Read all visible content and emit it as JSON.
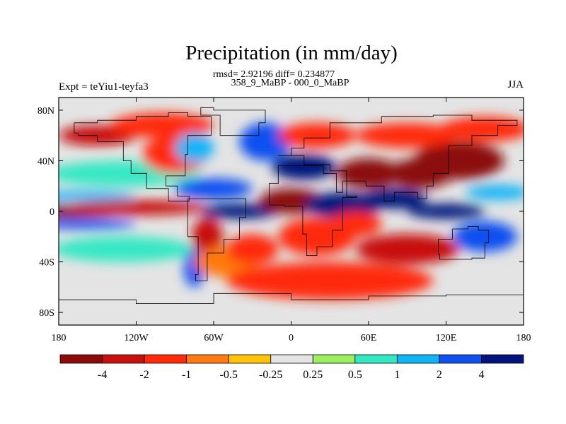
{
  "chart_data": {
    "type": "heatmap",
    "title": "Precipitation (in mm/day)",
    "subtitle_1": "rmsd= 2.92196 diff= 0.234877",
    "subtitle_2": "358_9_MaBP - 000_0_MaBP",
    "left_label": "Expt = teYiu1-teyfa3",
    "right_label": "JJA",
    "x_ticks": [
      "180",
      "120W",
      "60W",
      "0",
      "60E",
      "120E",
      "180"
    ],
    "x_tick_values": [
      -180,
      -120,
      -60,
      0,
      60,
      120,
      180
    ],
    "y_ticks": [
      "80N",
      "40N",
      "0",
      "40S",
      "80S"
    ],
    "y_tick_values": [
      80,
      40,
      0,
      -40,
      -80
    ],
    "xlim": [
      -180,
      180
    ],
    "ylim": [
      -90,
      90
    ],
    "colorbar": {
      "labels": [
        "-4",
        "-2",
        "-1",
        "-0.5",
        "-0.25",
        "0.25",
        "0.5",
        "1",
        "2",
        "4"
      ],
      "colors": [
        "#8b0a0a",
        "#c8100c",
        "#ff2a0a",
        "#ff7a10",
        "#ffc30a",
        "#e4e4e4",
        "#9cf060",
        "#34e8c4",
        "#12b4f6",
        "#1050f0",
        "#04147c"
      ]
    },
    "regions": [
      {
        "lon": -178,
        "lat": 0,
        "level": 0,
        "rx": 50,
        "ry": 5
      },
      {
        "lon": -120,
        "lat": 3,
        "level": 1,
        "rx": 55,
        "ry": 6
      },
      {
        "lon": -160,
        "lat": 12,
        "level": 8,
        "rx": 40,
        "ry": 4
      },
      {
        "lon": -160,
        "lat": -10,
        "level": 9,
        "rx": 40,
        "ry": 4
      },
      {
        "lon": -130,
        "lat": 30,
        "level": 7,
        "rx": 60,
        "ry": 10
      },
      {
        "lon": -130,
        "lat": -30,
        "level": 7,
        "rx": 55,
        "ry": 10
      },
      {
        "lon": -150,
        "lat": 60,
        "level": 1,
        "rx": 30,
        "ry": 8
      },
      {
        "lon": -100,
        "lat": 68,
        "level": 2,
        "rx": 40,
        "ry": 10
      },
      {
        "lon": -90,
        "lat": 45,
        "level": 2,
        "rx": 25,
        "ry": 15
      },
      {
        "lon": -75,
        "lat": 50,
        "level": 8,
        "rx": 15,
        "ry": 12
      },
      {
        "lon": -60,
        "lat": 18,
        "level": 9,
        "rx": 30,
        "ry": 8
      },
      {
        "lon": -40,
        "lat": 0,
        "level": 10,
        "rx": 30,
        "ry": 6
      },
      {
        "lon": -65,
        "lat": -20,
        "level": 1,
        "rx": 12,
        "ry": 15
      },
      {
        "lon": -75,
        "lat": -45,
        "level": 9,
        "rx": 8,
        "ry": 15
      },
      {
        "lon": -50,
        "lat": -40,
        "level": 3,
        "rx": 25,
        "ry": 12
      },
      {
        "lon": -30,
        "lat": -30,
        "level": 2,
        "rx": 20,
        "ry": 12
      },
      {
        "lon": -20,
        "lat": 55,
        "level": 9,
        "rx": 20,
        "ry": 15
      },
      {
        "lon": 10,
        "lat": 35,
        "level": 10,
        "rx": 25,
        "ry": 10
      },
      {
        "lon": 0,
        "lat": 8,
        "level": 0,
        "rx": 25,
        "ry": 10
      },
      {
        "lon": 40,
        "lat": 5,
        "level": 10,
        "rx": 30,
        "ry": 10
      },
      {
        "lon": 20,
        "lat": -20,
        "level": 2,
        "rx": 30,
        "ry": 15
      },
      {
        "lon": 60,
        "lat": 30,
        "level": 0,
        "rx": 25,
        "ry": 12
      },
      {
        "lon": 80,
        "lat": 10,
        "level": 10,
        "rx": 25,
        "ry": 8
      },
      {
        "lon": 100,
        "lat": 30,
        "level": 0,
        "rx": 25,
        "ry": 12
      },
      {
        "lon": 130,
        "lat": 40,
        "level": 0,
        "rx": 35,
        "ry": 15
      },
      {
        "lon": 120,
        "lat": 0,
        "level": 10,
        "rx": 30,
        "ry": 6
      },
      {
        "lon": 150,
        "lat": -20,
        "level": 9,
        "rx": 25,
        "ry": 12
      },
      {
        "lon": 90,
        "lat": -30,
        "level": 1,
        "rx": 40,
        "ry": 12
      },
      {
        "lon": 30,
        "lat": -55,
        "level": 2,
        "rx": 80,
        "ry": 15
      },
      {
        "lon": 150,
        "lat": 65,
        "level": 2,
        "rx": 35,
        "ry": 10
      },
      {
        "lon": 90,
        "lat": 60,
        "level": 2,
        "rx": 40,
        "ry": 10
      },
      {
        "lon": 20,
        "lat": 60,
        "level": 2,
        "rx": 30,
        "ry": 10
      },
      {
        "lon": 160,
        "lat": 15,
        "level": 8,
        "rx": 25,
        "ry": 6
      },
      {
        "lon": 50,
        "lat": -10,
        "level": 2,
        "rx": 20,
        "ry": 10
      }
    ]
  }
}
